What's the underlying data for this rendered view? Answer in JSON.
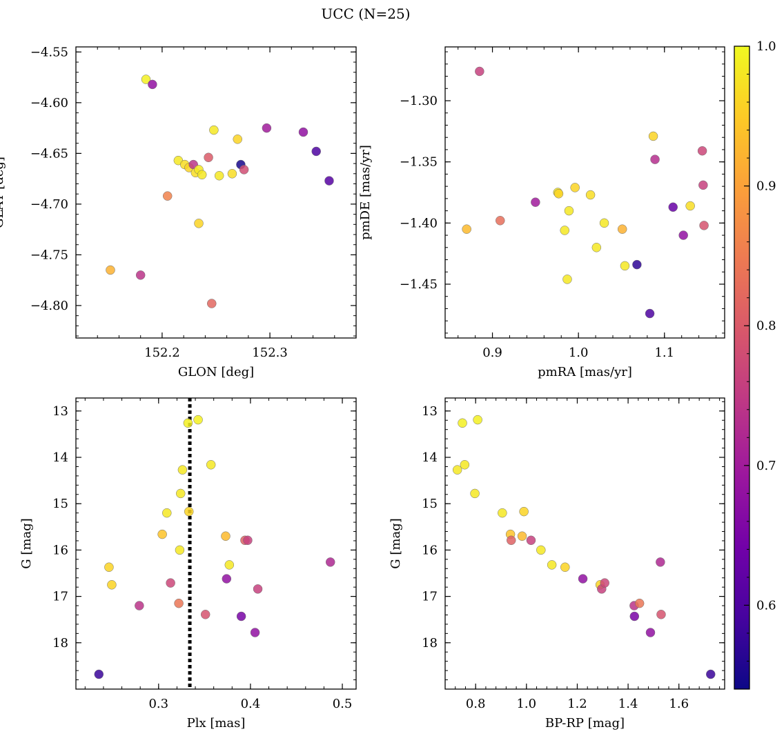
{
  "figure": {
    "title": "UCC (N=25)"
  },
  "colorbar": {
    "range": [
      0.54,
      1.0
    ],
    "ticks": [
      0.6,
      0.7,
      0.8,
      0.9,
      1.0
    ],
    "tick_labels": [
      "0.6",
      "0.7",
      "0.8",
      "0.9",
      "1.0"
    ],
    "colormap": [
      "#0d0887",
      "#46039f",
      "#7201a8",
      "#9c179e",
      "#bd3786",
      "#d8576b",
      "#ed7953",
      "#fb9f3a",
      "#fdca26",
      "#f0f921"
    ]
  },
  "chart_data": [
    {
      "type": "scatter",
      "title": "",
      "xlabel": "GLON [deg]",
      "ylabel": "GLAT [deg]",
      "xlim": [
        152.12,
        152.38
      ],
      "ylim": [
        -4.832,
        -4.545
      ],
      "x_ticks": [
        152.2,
        152.3
      ],
      "x_tick_labels": [
        "152.2",
        "152.3"
      ],
      "y_ticks": [
        -4.8,
        -4.75,
        -4.7,
        -4.65,
        -4.6,
        -4.55
      ],
      "y_tick_labels": [
        "−4.80",
        "−4.75",
        "−4.70",
        "−4.65",
        "−4.60",
        "−4.55"
      ],
      "points": [
        {
          "x": 152.185,
          "y": -4.577,
          "c": 0.99
        },
        {
          "x": 152.191,
          "y": -4.582,
          "c": 0.68
        },
        {
          "x": 152.215,
          "y": -4.657,
          "c": 0.98
        },
        {
          "x": 152.221,
          "y": -4.661,
          "c": 0.97
        },
        {
          "x": 152.225,
          "y": -4.664,
          "c": 0.96
        },
        {
          "x": 152.229,
          "y": -4.661,
          "c": 0.74
        },
        {
          "x": 152.231,
          "y": -4.669,
          "c": 0.97
        },
        {
          "x": 152.234,
          "y": -4.666,
          "c": 0.98
        },
        {
          "x": 152.237,
          "y": -4.671,
          "c": 0.98
        },
        {
          "x": 152.234,
          "y": -4.719,
          "c": 0.96
        },
        {
          "x": 152.205,
          "y": -4.692,
          "c": 0.86
        },
        {
          "x": 152.243,
          "y": -4.654,
          "c": 0.8
        },
        {
          "x": 152.248,
          "y": -4.627,
          "c": 0.98
        },
        {
          "x": 152.253,
          "y": -4.672,
          "c": 0.98
        },
        {
          "x": 152.265,
          "y": -4.67,
          "c": 0.97
        },
        {
          "x": 152.27,
          "y": -4.636,
          "c": 0.96
        },
        {
          "x": 152.273,
          "y": -4.661,
          "c": 0.55
        },
        {
          "x": 152.276,
          "y": -4.666,
          "c": 0.78
        },
        {
          "x": 152.297,
          "y": -4.625,
          "c": 0.7
        },
        {
          "x": 152.331,
          "y": -4.629,
          "c": 0.68
        },
        {
          "x": 152.343,
          "y": -4.648,
          "c": 0.6
        },
        {
          "x": 152.355,
          "y": -4.677,
          "c": 0.61
        },
        {
          "x": 152.152,
          "y": -4.765,
          "c": 0.92
        },
        {
          "x": 152.18,
          "y": -4.77,
          "c": 0.74
        },
        {
          "x": 152.246,
          "y": -4.798,
          "c": 0.82
        }
      ]
    },
    {
      "type": "scatter",
      "title": "",
      "xlabel": "pmRA [mas/yr]",
      "ylabel": "pmDE [mas/yr]",
      "xlim": [
        0.845,
        1.17
      ],
      "ylim": [
        -1.494,
        -1.256
      ],
      "x_ticks": [
        0.9,
        1.0,
        1.1
      ],
      "x_tick_labels": [
        "0.9",
        "1.0",
        "1.1"
      ],
      "y_ticks": [
        -1.45,
        -1.4,
        -1.35,
        -1.3
      ],
      "y_tick_labels": [
        "−1.45",
        "−1.40",
        "−1.35",
        "−1.30"
      ],
      "points": [
        {
          "x": 0.885,
          "y": -1.276,
          "c": 0.76
        },
        {
          "x": 0.87,
          "y": -1.405,
          "c": 0.93
        },
        {
          "x": 0.909,
          "y": -1.398,
          "c": 0.83
        },
        {
          "x": 0.95,
          "y": -1.383,
          "c": 0.7
        },
        {
          "x": 0.976,
          "y": -1.375,
          "c": 0.98
        },
        {
          "x": 0.977,
          "y": -1.376,
          "c": 0.96
        },
        {
          "x": 0.996,
          "y": -1.371,
          "c": 0.96
        },
        {
          "x": 0.989,
          "y": -1.39,
          "c": 0.98
        },
        {
          "x": 0.984,
          "y": -1.406,
          "c": 0.98
        },
        {
          "x": 0.987,
          "y": -1.446,
          "c": 0.98
        },
        {
          "x": 1.014,
          "y": -1.377,
          "c": 0.97
        },
        {
          "x": 1.03,
          "y": -1.4,
          "c": 0.98
        },
        {
          "x": 1.021,
          "y": -1.42,
          "c": 0.98
        },
        {
          "x": 1.051,
          "y": -1.405,
          "c": 0.92
        },
        {
          "x": 1.054,
          "y": -1.435,
          "c": 0.98
        },
        {
          "x": 1.068,
          "y": -1.434,
          "c": 0.57
        },
        {
          "x": 1.083,
          "y": -1.474,
          "c": 0.6
        },
        {
          "x": 1.087,
          "y": -1.329,
          "c": 0.96
        },
        {
          "x": 1.089,
          "y": -1.348,
          "c": 0.73
        },
        {
          "x": 1.11,
          "y": -1.387,
          "c": 0.63
        },
        {
          "x": 1.122,
          "y": -1.41,
          "c": 0.68
        },
        {
          "x": 1.13,
          "y": -1.386,
          "c": 0.97
        },
        {
          "x": 1.144,
          "y": -1.341,
          "c": 0.77
        },
        {
          "x": 1.145,
          "y": -1.369,
          "c": 0.76
        },
        {
          "x": 1.146,
          "y": -1.402,
          "c": 0.79
        }
      ]
    },
    {
      "type": "scatter",
      "title": "",
      "xlabel": "Plx [mas]",
      "ylabel": "G [mag]",
      "xlim": [
        0.21,
        0.515
      ],
      "ylim": [
        19.0,
        12.72
      ],
      "x_ticks": [
        0.3,
        0.4,
        0.5
      ],
      "x_tick_labels": [
        "0.3",
        "0.4",
        "0.5"
      ],
      "y_ticks": [
        13,
        14,
        15,
        16,
        17,
        18
      ],
      "y_tick_labels": [
        "13",
        "14",
        "15",
        "16",
        "17",
        "18"
      ],
      "vline": 0.334,
      "points": [
        {
          "x": 0.343,
          "y": 13.19,
          "c": 0.99
        },
        {
          "x": 0.332,
          "y": 13.26,
          "c": 0.99
        },
        {
          "x": 0.357,
          "y": 14.16,
          "c": 0.98
        },
        {
          "x": 0.326,
          "y": 14.27,
          "c": 0.98
        },
        {
          "x": 0.324,
          "y": 14.78,
          "c": 0.98
        },
        {
          "x": 0.309,
          "y": 15.2,
          "c": 0.98
        },
        {
          "x": 0.333,
          "y": 15.17,
          "c": 0.96
        },
        {
          "x": 0.304,
          "y": 15.66,
          "c": 0.94
        },
        {
          "x": 0.373,
          "y": 15.7,
          "c": 0.93
        },
        {
          "x": 0.394,
          "y": 15.79,
          "c": 0.81
        },
        {
          "x": 0.397,
          "y": 15.79,
          "c": 0.76
        },
        {
          "x": 0.323,
          "y": 16.0,
          "c": 0.98
        },
        {
          "x": 0.377,
          "y": 16.32,
          "c": 0.98
        },
        {
          "x": 0.246,
          "y": 16.37,
          "c": 0.96
        },
        {
          "x": 0.249,
          "y": 16.75,
          "c": 0.96
        },
        {
          "x": 0.313,
          "y": 16.71,
          "c": 0.77
        },
        {
          "x": 0.374,
          "y": 16.62,
          "c": 0.68
        },
        {
          "x": 0.408,
          "y": 16.84,
          "c": 0.76
        },
        {
          "x": 0.487,
          "y": 16.26,
          "c": 0.72
        },
        {
          "x": 0.279,
          "y": 17.2,
          "c": 0.74
        },
        {
          "x": 0.322,
          "y": 17.15,
          "c": 0.84
        },
        {
          "x": 0.351,
          "y": 17.39,
          "c": 0.79
        },
        {
          "x": 0.39,
          "y": 17.43,
          "c": 0.65
        },
        {
          "x": 0.405,
          "y": 17.78,
          "c": 0.68
        },
        {
          "x": 0.235,
          "y": 18.68,
          "c": 0.58
        }
      ]
    },
    {
      "type": "scatter",
      "title": "",
      "xlabel": "BP-RP [mag]",
      "ylabel": "G [mag]",
      "xlim": [
        0.68,
        1.78
      ],
      "ylim": [
        19.0,
        12.72
      ],
      "x_ticks": [
        0.8,
        1.0,
        1.2,
        1.4,
        1.6
      ],
      "x_tick_labels": [
        "0.8",
        "1.0",
        "1.2",
        "1.4",
        "1.6"
      ],
      "y_ticks": [
        13,
        14,
        15,
        16,
        17,
        18
      ],
      "y_tick_labels": [
        "13",
        "14",
        "15",
        "16",
        "17",
        "18"
      ],
      "points": [
        {
          "x": 0.748,
          "y": 13.26,
          "c": 0.99
        },
        {
          "x": 0.808,
          "y": 13.19,
          "c": 0.99
        },
        {
          "x": 0.757,
          "y": 14.16,
          "c": 0.98
        },
        {
          "x": 0.728,
          "y": 14.27,
          "c": 0.98
        },
        {
          "x": 0.797,
          "y": 14.78,
          "c": 0.98
        },
        {
          "x": 0.905,
          "y": 15.2,
          "c": 0.98
        },
        {
          "x": 0.99,
          "y": 15.17,
          "c": 0.96
        },
        {
          "x": 0.937,
          "y": 15.66,
          "c": 0.94
        },
        {
          "x": 0.983,
          "y": 15.7,
          "c": 0.93
        },
        {
          "x": 0.94,
          "y": 15.79,
          "c": 0.81
        },
        {
          "x": 1.018,
          "y": 15.79,
          "c": 0.76
        },
        {
          "x": 1.057,
          "y": 16.0,
          "c": 0.98
        },
        {
          "x": 1.1,
          "y": 16.32,
          "c": 0.98
        },
        {
          "x": 1.152,
          "y": 16.37,
          "c": 0.96
        },
        {
          "x": 1.222,
          "y": 16.62,
          "c": 0.68
        },
        {
          "x": 1.29,
          "y": 16.75,
          "c": 0.96
        },
        {
          "x": 1.296,
          "y": 16.84,
          "c": 0.76
        },
        {
          "x": 1.308,
          "y": 16.71,
          "c": 0.77
        },
        {
          "x": 1.527,
          "y": 16.26,
          "c": 0.72
        },
        {
          "x": 1.424,
          "y": 17.2,
          "c": 0.74
        },
        {
          "x": 1.445,
          "y": 17.15,
          "c": 0.84
        },
        {
          "x": 1.53,
          "y": 17.39,
          "c": 0.79
        },
        {
          "x": 1.425,
          "y": 17.43,
          "c": 0.65
        },
        {
          "x": 1.488,
          "y": 17.78,
          "c": 0.68
        },
        {
          "x": 1.725,
          "y": 18.68,
          "c": 0.58
        }
      ]
    }
  ]
}
